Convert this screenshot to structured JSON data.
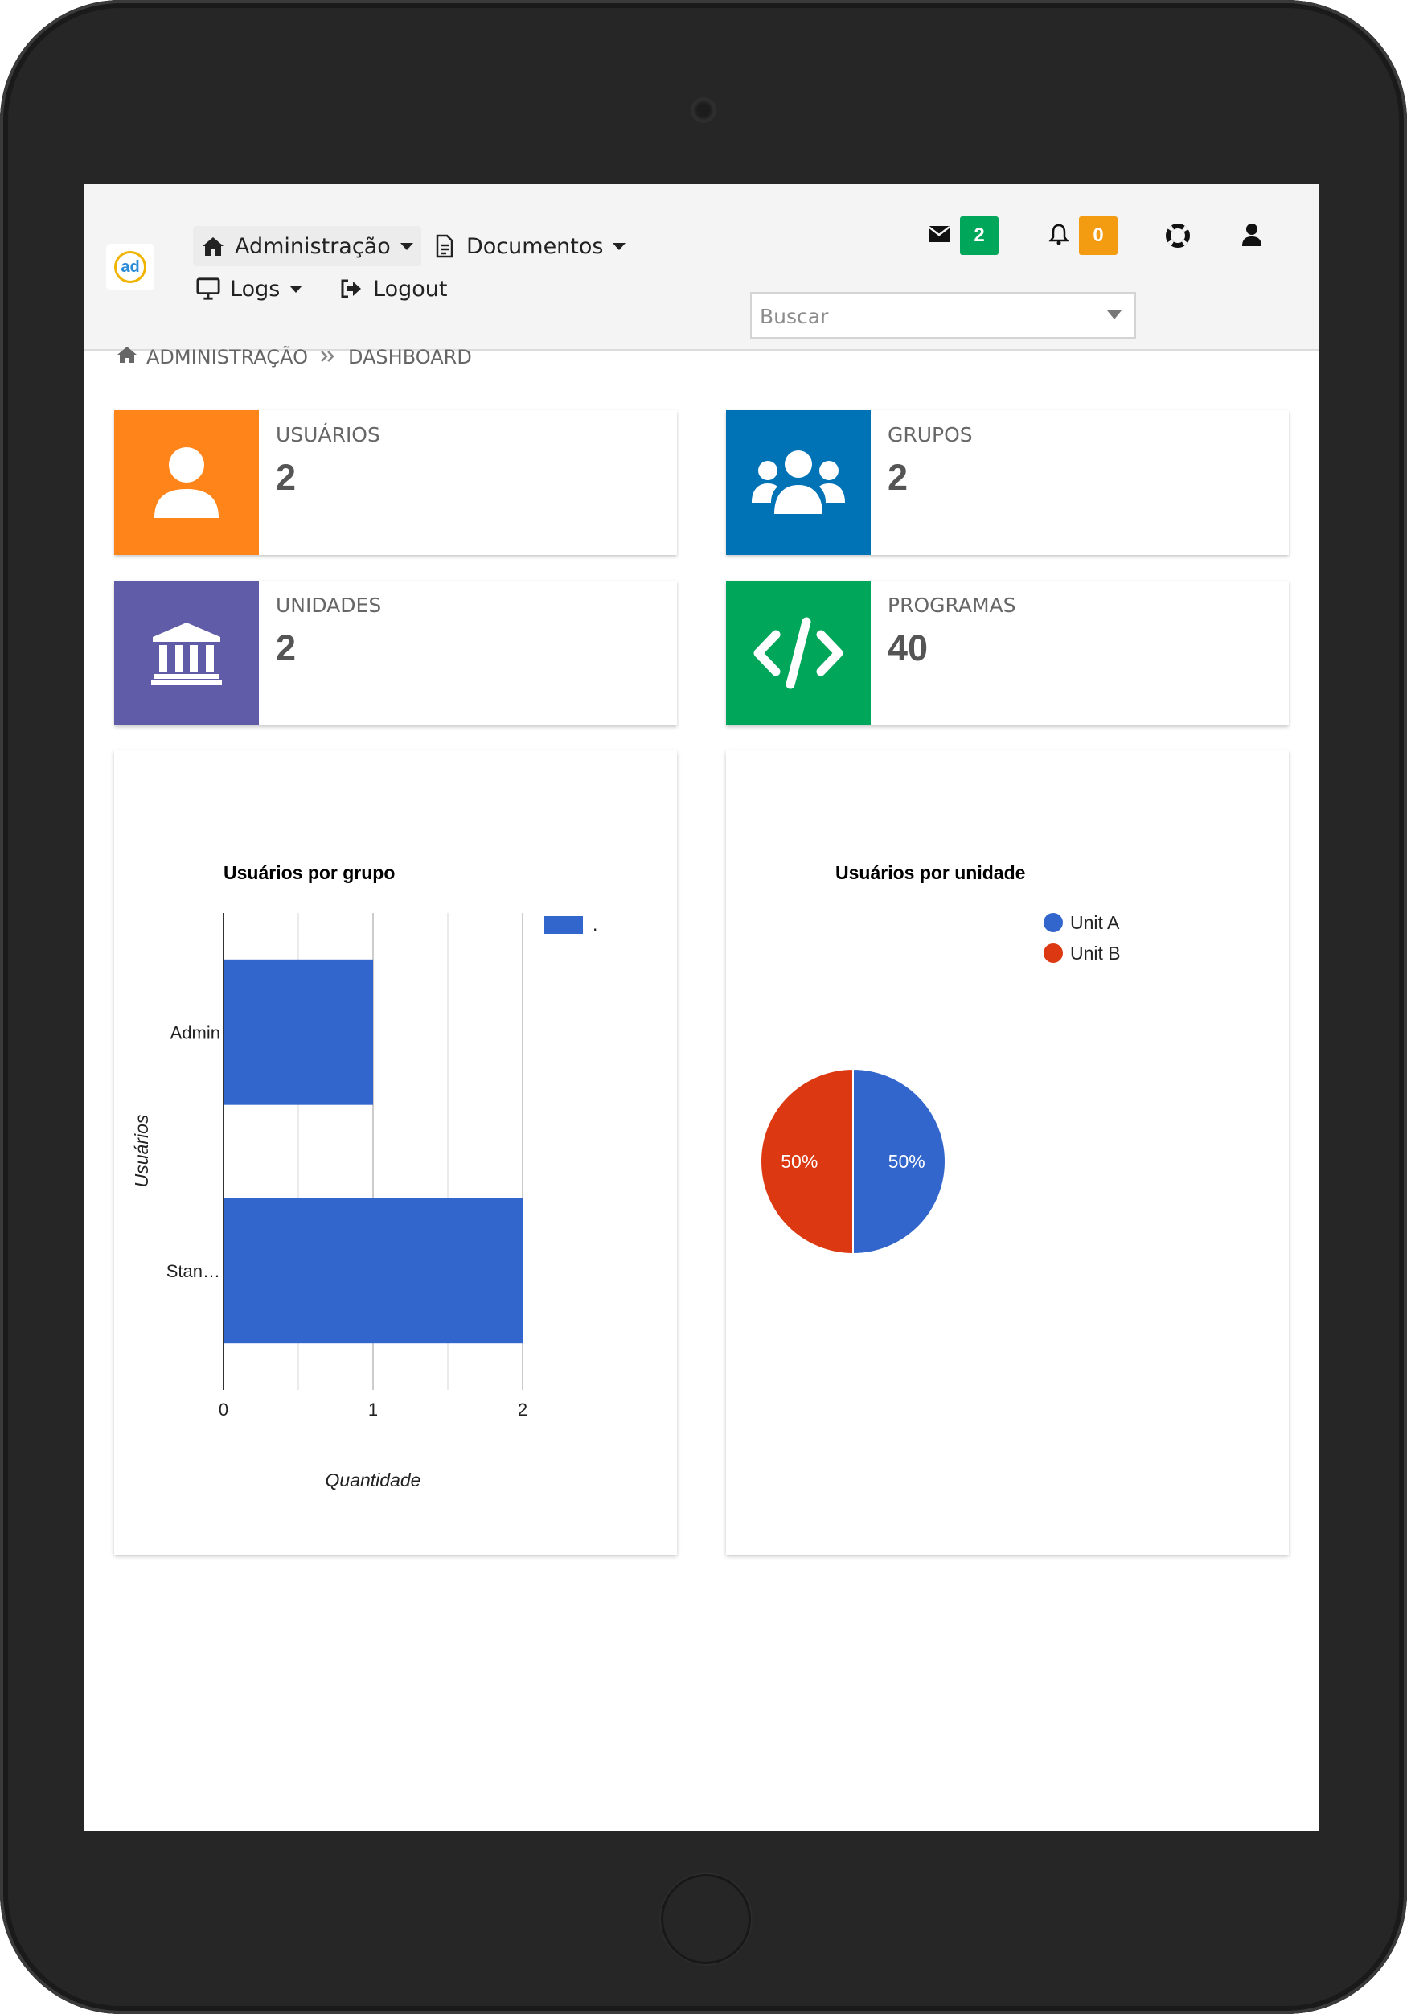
{
  "nav": {
    "administracao": "Administração",
    "documentos": "Documentos",
    "logs": "Logs",
    "logout": "Logout",
    "messages_count": "2",
    "notifications_count": "0",
    "search_placeholder": "Buscar"
  },
  "breadcrumb": {
    "root": "ADMINISTRAÇÃO",
    "current": "DASHBOARD"
  },
  "cards": [
    {
      "label": "USUÁRIOS",
      "value": "2",
      "color": "#ff851b",
      "icon": "user-icon"
    },
    {
      "label": "GRUPOS",
      "value": "2",
      "color": "#0073b7",
      "icon": "users-icon"
    },
    {
      "label": "UNIDADES",
      "value": "2",
      "color": "#605ca8",
      "icon": "university-icon"
    },
    {
      "label": "PROGRAMAS",
      "value": "40",
      "color": "#00a65a",
      "icon": "code-icon"
    }
  ],
  "colors": {
    "messages_badge": "#00a65a",
    "notifications_badge": "#f39c12",
    "series_blue": "#3366cc",
    "series_red": "#dc3912"
  },
  "chart_data": [
    {
      "type": "bar",
      "orientation": "horizontal",
      "title": "Usuários por grupo",
      "categories": [
        "Admin",
        "Stan…"
      ],
      "series": [
        {
          "name": ".",
          "values": [
            1,
            2
          ]
        }
      ],
      "xlabel": "Quantidade",
      "ylabel": "Usuários",
      "xlim": [
        0,
        2
      ],
      "xticks": [
        "0",
        "1",
        "2"
      ],
      "grid": true,
      "legend": "top-right"
    },
    {
      "type": "pie",
      "title": "Usuários por unidade",
      "labels": [
        "Unit A",
        "Unit B"
      ],
      "values": [
        50,
        50
      ],
      "slice_labels": [
        "50%",
        "50%"
      ],
      "legend": "top-right"
    }
  ]
}
